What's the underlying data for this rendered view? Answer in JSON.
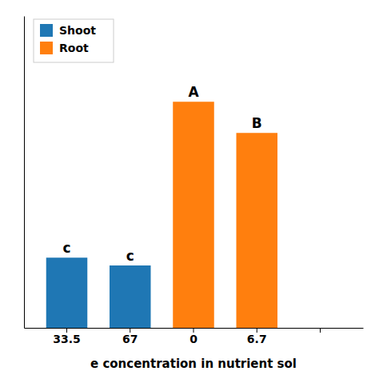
{
  "chart_data": {
    "type": "bar",
    "xlabel": "e concentration in nutrient sol",
    "categories": [
      "33.5",
      "67",
      "0",
      "6.7",
      null
    ],
    "series": [
      {
        "name": "Shoot",
        "values": [
          0.18,
          0.16,
          0.0,
          0.0,
          0.0
        ]
      },
      {
        "name": "Root",
        "values": [
          0.0,
          0.0,
          0.58,
          0.5,
          0.0
        ]
      }
    ],
    "annotations": [
      "c",
      "c",
      "A",
      "B",
      null
    ],
    "ylim": [
      0,
      0.8
    ],
    "stacked": true,
    "grid": false,
    "legend": "upper left",
    "tick_labels": "x"
  }
}
